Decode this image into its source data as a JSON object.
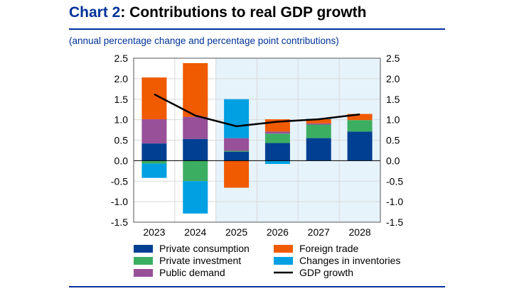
{
  "title_prefix": "Chart 2",
  "title_rest": ": Contributions to real GDP growth",
  "subtitle": "(annual percentage change and percentage point contributions)",
  "chart_data": {
    "type": "bar",
    "stacked": true,
    "categories": [
      "2023",
      "2024",
      "2025",
      "2026",
      "2027",
      "2028"
    ],
    "ylim": [
      -1.5,
      2.5
    ],
    "yticks": [
      "2.5",
      "2.0",
      "1.5",
      "1.0",
      "0.5",
      "0.0",
      "-0.5",
      "-1.0",
      "-1.5"
    ],
    "grid": true,
    "projection_shading_from": "2025",
    "legend_placement": "bottom",
    "series": [
      {
        "name": "Private consumption",
        "color": "#003f91",
        "values": [
          0.42,
          0.53,
          0.22,
          0.43,
          0.55,
          0.71
        ]
      },
      {
        "name": "Private investment",
        "color": "#3cae62",
        "values": [
          -0.07,
          -0.5,
          0.02,
          0.23,
          0.33,
          0.28
        ]
      },
      {
        "name": "Public demand",
        "color": "#985099",
        "values": [
          0.59,
          0.54,
          0.31,
          0.05,
          0.03,
          0.0
        ]
      },
      {
        "name": "Foreign trade",
        "color": "#f05a00",
        "values": [
          1.02,
          1.31,
          -0.66,
          0.3,
          0.1,
          0.15
        ]
      },
      {
        "name": "Changes in inventories",
        "color": "#00a0e2",
        "values": [
          -0.35,
          -0.79,
          0.95,
          -0.08,
          0.01,
          0.0
        ]
      }
    ],
    "line": {
      "name": "GDP growth",
      "color": "#000000",
      "values": [
        1.62,
        1.1,
        0.84,
        0.95,
        1.01,
        1.13
      ]
    }
  }
}
